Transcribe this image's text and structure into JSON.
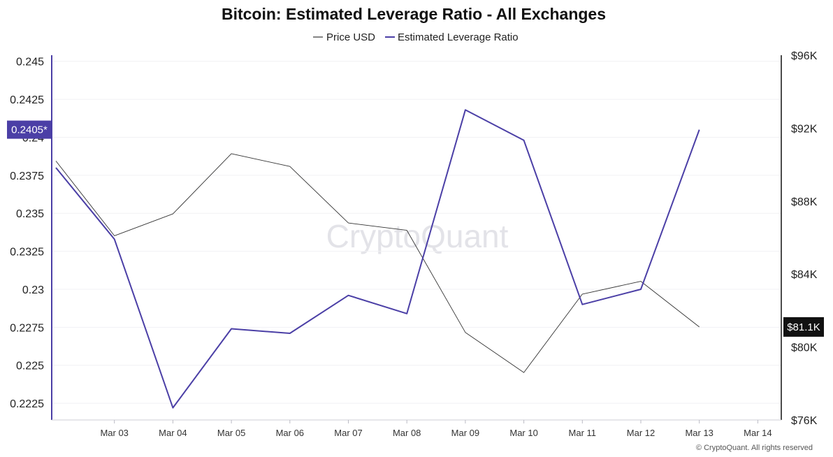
{
  "chart_data": {
    "type": "line",
    "title": "Bitcoin: Estimated Leverage Ratio - All Exchanges",
    "categories": [
      "Mar 03",
      "Mar 04",
      "Mar 05",
      "Mar 06",
      "Mar 07",
      "Mar 08",
      "Mar 09",
      "Mar 10",
      "Mar 11",
      "Mar 12",
      "Mar 13",
      "Mar 14"
    ],
    "x_start": "Mar 02",
    "series": [
      {
        "name": "Price USD",
        "axis": "right",
        "color": "#333333",
        "x": [
          "Mar 02",
          "Mar 03",
          "Mar 04",
          "Mar 05",
          "Mar 06",
          "Mar 07",
          "Mar 08",
          "Mar 09",
          "Mar 10",
          "Mar 11",
          "Mar 12",
          "Mar 13"
        ],
        "values": [
          90200,
          86100,
          87300,
          90600,
          89900,
          86800,
          86400,
          80800,
          78600,
          82900,
          83600,
          81100
        ]
      },
      {
        "name": "Estimated Leverage Ratio",
        "axis": "left",
        "color": "#4b3fa6",
        "x": [
          "Mar 02",
          "Mar 03",
          "Mar 04",
          "Mar 05",
          "Mar 06",
          "Mar 07",
          "Mar 08",
          "Mar 09",
          "Mar 10",
          "Mar 11",
          "Mar 12",
          "Mar 13"
        ],
        "values": [
          0.238,
          0.2333,
          0.2222,
          0.2274,
          0.2271,
          0.2296,
          0.2284,
          0.2418,
          0.2398,
          0.229,
          0.23,
          0.2405
        ]
      }
    ],
    "y_left": {
      "ylim": [
        0.2214,
        0.2454
      ],
      "ticks": [
        "0.245",
        "0.2425",
        "0.24",
        "0.2375",
        "0.235",
        "0.2325",
        "0.23",
        "0.2275",
        "0.225",
        "0.2225"
      ],
      "tick_values": [
        0.245,
        0.2425,
        0.24,
        0.2375,
        0.235,
        0.2325,
        0.23,
        0.2275,
        0.225,
        0.2225
      ]
    },
    "y_right": {
      "ylim": [
        76000,
        96000
      ],
      "ticks": [
        "$96K",
        "$92K",
        "$88K",
        "$84K",
        "$80K",
        "$76K"
      ],
      "tick_values": [
        96000,
        92000,
        88000,
        84000,
        80000,
        76000
      ]
    },
    "badges": {
      "left": {
        "label": "0.2405*",
        "value": 0.2405,
        "color": "#4b3fa6"
      },
      "right": {
        "label": "$81.1K",
        "value": 81100,
        "color": "#111111"
      }
    },
    "legend_placement": "top-center",
    "grid": true
  },
  "watermark": "CryptoQuant",
  "copyright": "© CryptoQuant. All rights reserved"
}
